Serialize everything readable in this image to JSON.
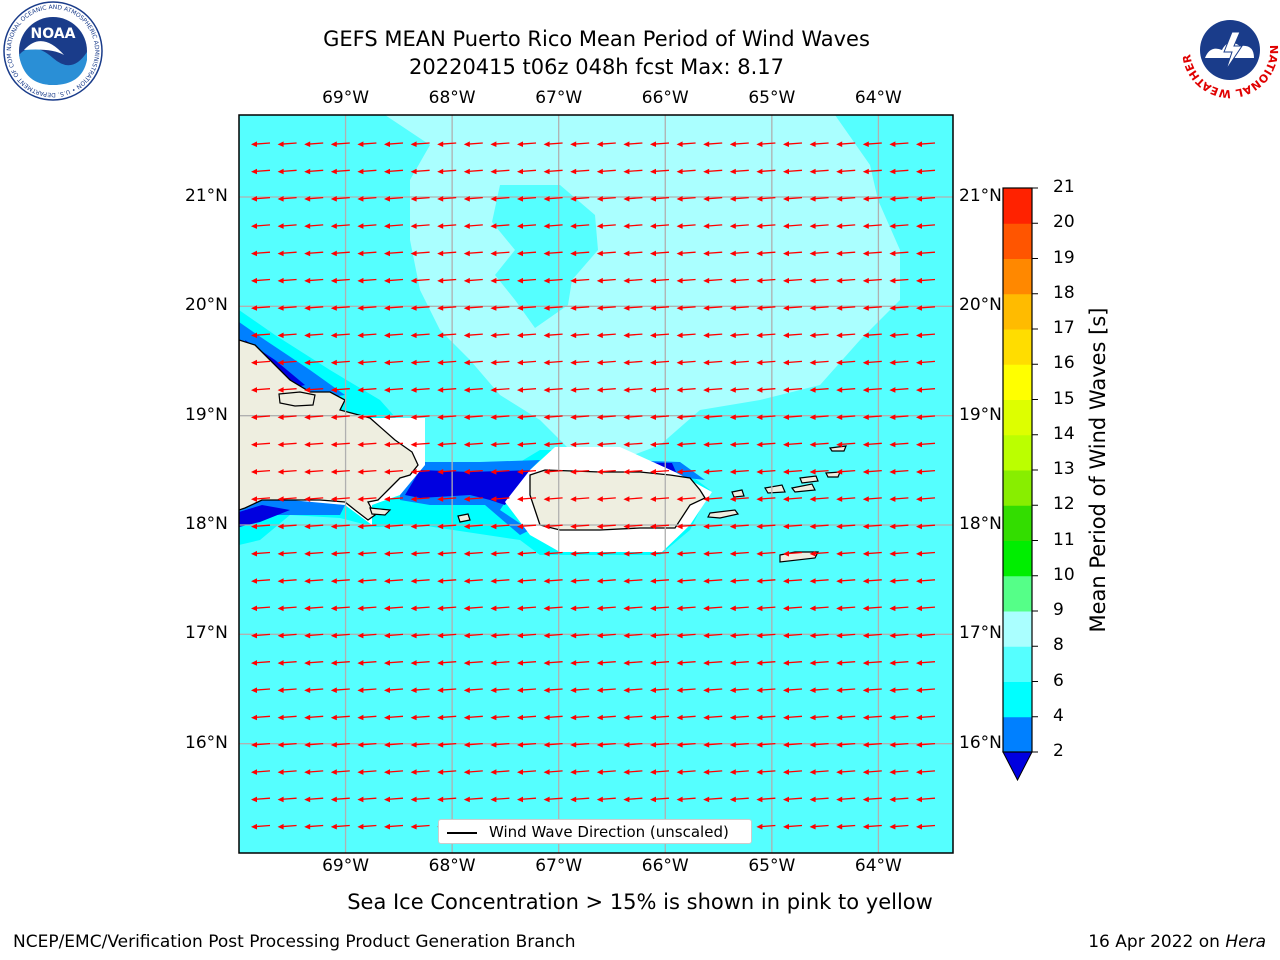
{
  "header": {
    "title_line1": "GEFS MEAN Puerto Rico Mean Period of Wind Waves",
    "title_line2": "20220415 t06z 048h fcst   Max: 8.17"
  },
  "logos": {
    "noaa": {
      "text": "NOAA",
      "ring_text": "NATIONAL OCEANIC AND ATMOSPHERIC ADMINISTRATION • U.S. DEPARTMENT OF COMMERCE"
    },
    "nws": {
      "ring_text": "NATIONAL WEATHER SERVICE"
    }
  },
  "map": {
    "lon_labels": [
      "69°W",
      "68°W",
      "67°W",
      "66°W",
      "65°W",
      "64°W"
    ],
    "lat_labels": [
      "21°N",
      "20°N",
      "19°N",
      "18°N",
      "17°N",
      "16°N"
    ],
    "lon_range": [
      -70.0,
      -63.3
    ],
    "lat_range": [
      15.0,
      21.75
    ],
    "arrow_direction": "westward",
    "colors": {
      "land": "#eeeee0",
      "period_6_8": "#55ffff",
      "period_8_9": "#aaffff",
      "period_4_6": "#00ffff",
      "period_2_4": "#0080ff",
      "period_below_2": "#0000e0",
      "arrow": "#ff0000",
      "grid": "#b0b0b0"
    }
  },
  "legend": {
    "label": "Wind Wave Direction (unscaled)"
  },
  "colorbar": {
    "label": "Mean Period of Wind Waves [s]",
    "ticks": [
      "2",
      "4",
      "6",
      "8",
      "9",
      "10",
      "11",
      "12",
      "13",
      "14",
      "15",
      "16",
      "17",
      "18",
      "19",
      "20",
      "21"
    ],
    "colors": [
      "#0080ff",
      "#00ffff",
      "#55ffff",
      "#aaffff",
      "#55ff88",
      "#00ee00",
      "#33dd00",
      "#88ee00",
      "#bbff00",
      "#ddff00",
      "#ffff00",
      "#ffdd00",
      "#ffbb00",
      "#ff8800",
      "#ff5500",
      "#ff2200"
    ],
    "under_color": "#0000e0"
  },
  "note": "Sea Ice Concentration > 15% is shown in pink to yellow",
  "footer": {
    "left": "NCEP/EMC/Verification Post Processing Product Generation Branch",
    "right_prefix": "16 Apr 2022 on ",
    "right_host": "Hera"
  }
}
